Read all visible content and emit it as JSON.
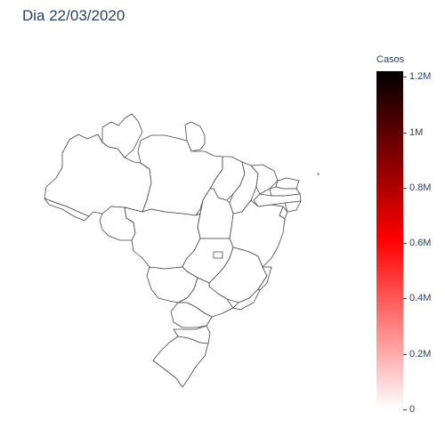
{
  "title": "Dia 22/03/2020",
  "colorbar": {
    "title": "Casos",
    "ticks": [
      {
        "label": "0",
        "value": 0
      },
      {
        "label": "0.2M",
        "value": 200000
      },
      {
        "label": "0.4M",
        "value": 400000
      },
      {
        "label": "0.6M",
        "value": 600000
      },
      {
        "label": "0.8M",
        "value": 800000
      },
      {
        "label": "1M",
        "value": 1000000
      },
      {
        "label": "1.2M",
        "value": 1200000
      }
    ],
    "min": 0,
    "max": 1220000,
    "colorscale": [
      "#ffffff",
      "#ff0000",
      "#000000"
    ]
  },
  "map": {
    "region": "Brazil states choropleth",
    "fill_color": "#ffffff",
    "border_color": "#444444"
  }
}
